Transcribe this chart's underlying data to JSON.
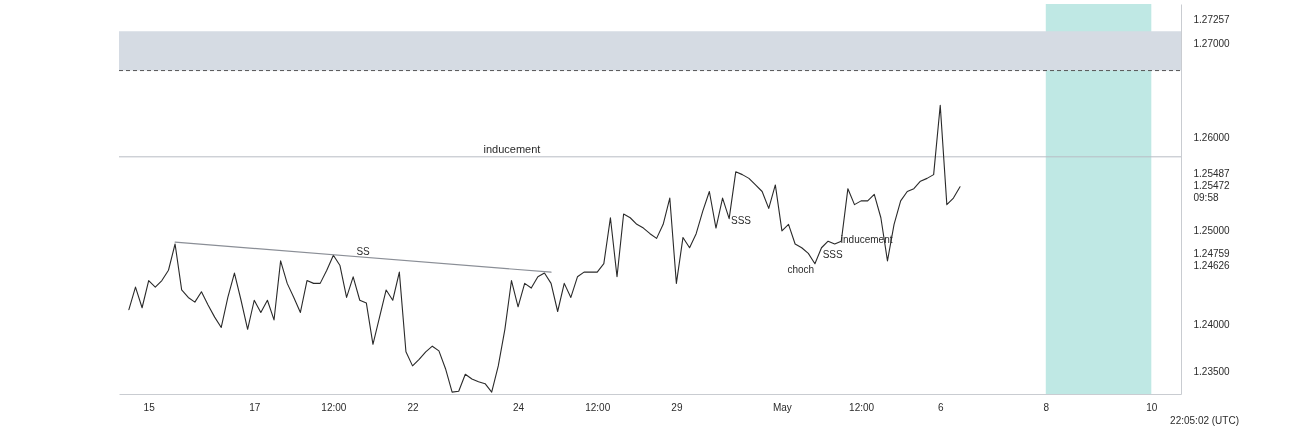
{
  "chart_data": {
    "type": "line",
    "categories": [
      null,
      null,
      null,
      null,
      "15",
      null,
      null,
      null,
      null,
      null,
      null,
      null,
      null,
      null,
      null,
      null,
      null,
      null,
      null,
      null,
      "17",
      null,
      null,
      null,
      null,
      null,
      null,
      null,
      null,
      null,
      null,
      null,
      "12:00",
      null,
      null,
      null,
      null,
      null,
      null,
      null,
      null,
      null,
      null,
      null,
      "22",
      null,
      null,
      null,
      null,
      null,
      null,
      null,
      null,
      null,
      null,
      null,
      null,
      null,
      null,
      null,
      "24",
      null,
      null,
      null,
      null,
      null,
      null,
      null,
      null,
      null,
      null,
      null,
      "12:00",
      null,
      null,
      null,
      null,
      null,
      null,
      null,
      null,
      null,
      null,
      null,
      "29",
      null,
      null,
      null,
      null,
      null,
      null,
      null,
      null,
      null,
      null,
      null,
      null,
      null,
      null,
      null,
      "May",
      null,
      null,
      null,
      null,
      null,
      null,
      null,
      null,
      null,
      null,
      null,
      "12:00",
      null,
      null,
      null,
      null,
      null,
      null,
      null,
      null,
      null,
      null,
      null,
      "6",
      null,
      null,
      null,
      null,
      null,
      null,
      null,
      null,
      null,
      null,
      null,
      null,
      null,
      null,
      null,
      "8",
      null,
      null,
      null,
      null,
      null,
      null,
      null,
      null,
      null,
      null,
      null,
      null,
      null,
      null,
      null,
      "10",
      null,
      null,
      null,
      null
    ],
    "ylim": [
      1.2326,
      1.2742
    ],
    "yticks": [
      {
        "value": 1.235,
        "label": "1.23500"
      },
      {
        "value": 1.24,
        "label": "1.24000"
      },
      1.24626,
      1.24759,
      {
        "value": 1.25,
        "label": "1.25000"
      },
      {
        "value": 1.25487,
        "label": "1.25487\n1.25472\n09:58"
      },
      {
        "value": 1.26,
        "label": "1.26000"
      },
      {
        "value": 1.27,
        "label": "1.27000"
      },
      1.27257
    ],
    "bands": [
      {
        "axis": "x",
        "from": "8",
        "to": "10",
        "color": "#bfe8e4"
      },
      {
        "axis": "y",
        "from": 1.2671,
        "to": 1.2713,
        "color": "#d5dbe3"
      }
    ],
    "ref_lines": [
      {
        "axis": "y",
        "value": 1.2671,
        "color": "#555555",
        "line_style": "dashed"
      },
      {
        "axis": "y",
        "value": 1.2579,
        "color": "#b8bcc4",
        "label": "inducement"
      }
    ],
    "series": [
      {
        "color": "#2a2a2a",
        "values": [
          null,
          1.2416,
          1.244,
          1.2418,
          1.2447,
          1.244,
          1.2447,
          1.2458,
          1.2486,
          1.2437,
          1.2429,
          1.2424,
          1.2435,
          1.2421,
          1.2408,
          1.2397,
          1.2429,
          1.2455,
          1.2426,
          1.2395,
          1.2426,
          1.2413,
          1.2426,
          1.2405,
          1.2468,
          1.2444,
          1.2429,
          1.2413,
          1.2447,
          1.2444,
          1.2444,
          1.2458,
          1.2474,
          1.2463,
          1.2429,
          1.2451,
          1.2426,
          1.2423,
          1.2379,
          1.2408,
          1.2437,
          1.2426,
          1.2456,
          1.2371,
          1.2356,
          1.2363,
          1.2371,
          1.2377,
          1.2372,
          1.2353,
          1.2328,
          1.2329,
          1.2347,
          1.2342,
          1.2339,
          1.2337,
          1.2328,
          1.2356,
          1.2395,
          1.2447,
          1.2419,
          1.2444,
          1.2439,
          1.2451,
          1.2455,
          1.2444,
          1.2414,
          1.2444,
          1.2429,
          1.2451,
          1.2456,
          1.2456,
          1.2456,
          1.2465,
          1.2514,
          1.2451,
          1.2518,
          1.2514,
          1.2507,
          1.2503,
          1.2497,
          1.2492,
          1.2507,
          1.2535,
          1.2444,
          1.2493,
          1.2482,
          1.2497,
          1.2521,
          1.2542,
          1.2503,
          1.2535,
          1.2513,
          1.2563,
          1.256,
          1.2556,
          1.2549,
          1.2542,
          1.2524,
          1.2549,
          1.25,
          1.2507,
          1.2486,
          1.2482,
          1.2476,
          1.2465,
          1.2482,
          1.2489,
          1.2486,
          1.2489,
          1.2545,
          1.2528,
          1.2532,
          1.2532,
          1.2539,
          1.2514,
          1.2468,
          1.2507,
          1.2532,
          1.2542,
          1.2545,
          1.2553,
          1.2556,
          1.256,
          1.2634,
          1.2528,
          1.2535,
          1.2547,
          null,
          null,
          null,
          null,
          null,
          null,
          null,
          null,
          null,
          null,
          null,
          null,
          null,
          null,
          null,
          null,
          null,
          null,
          null,
          null,
          null,
          null,
          null,
          null,
          null,
          null,
          null,
          null,
          null,
          null,
          null,
          null,
          null
        ]
      },
      {
        "type": "line",
        "color": "#8a8e96",
        "values": [
          null,
          null,
          null,
          null,
          null,
          null,
          null,
          null,
          1.2488,
          null,
          null,
          null,
          null,
          null,
          null,
          null,
          null,
          null,
          null,
          null,
          null,
          null,
          null,
          null,
          null,
          null,
          null,
          null,
          null,
          null,
          null,
          null,
          null,
          null,
          null,
          null,
          null,
          null,
          null,
          null,
          null,
          null,
          null,
          null,
          null,
          null,
          null,
          null,
          null,
          null,
          null,
          null,
          null,
          null,
          null,
          null,
          null,
          null,
          null,
          null,
          null,
          null,
          null,
          null,
          null,
          1.2456,
          null,
          null,
          null,
          null,
          null,
          null,
          null,
          null,
          null,
          null,
          null,
          null,
          null,
          null,
          null,
          null,
          null,
          null,
          null,
          null,
          null,
          null,
          null,
          null,
          null,
          null,
          null,
          null,
          null,
          null,
          null,
          null,
          null,
          null,
          null,
          null,
          null,
          null,
          null,
          null,
          null,
          null,
          null,
          null,
          null,
          null,
          null,
          null,
          null,
          null,
          null,
          null,
          null,
          null,
          null,
          null,
          null,
          null,
          null,
          null,
          null,
          null,
          null,
          null,
          null,
          null,
          null,
          null,
          null,
          null,
          null,
          null,
          null,
          null,
          null,
          null,
          null,
          null,
          null,
          null,
          null,
          null,
          null,
          null,
          null,
          null,
          null,
          null,
          null,
          null,
          null,
          null,
          null,
          null,
          null
        ]
      }
    ],
    "annotations": [
      "SS",
      "choch",
      "SSS",
      "SSS",
      "inducement",
      "22:05:02 (UTC)"
    ]
  }
}
